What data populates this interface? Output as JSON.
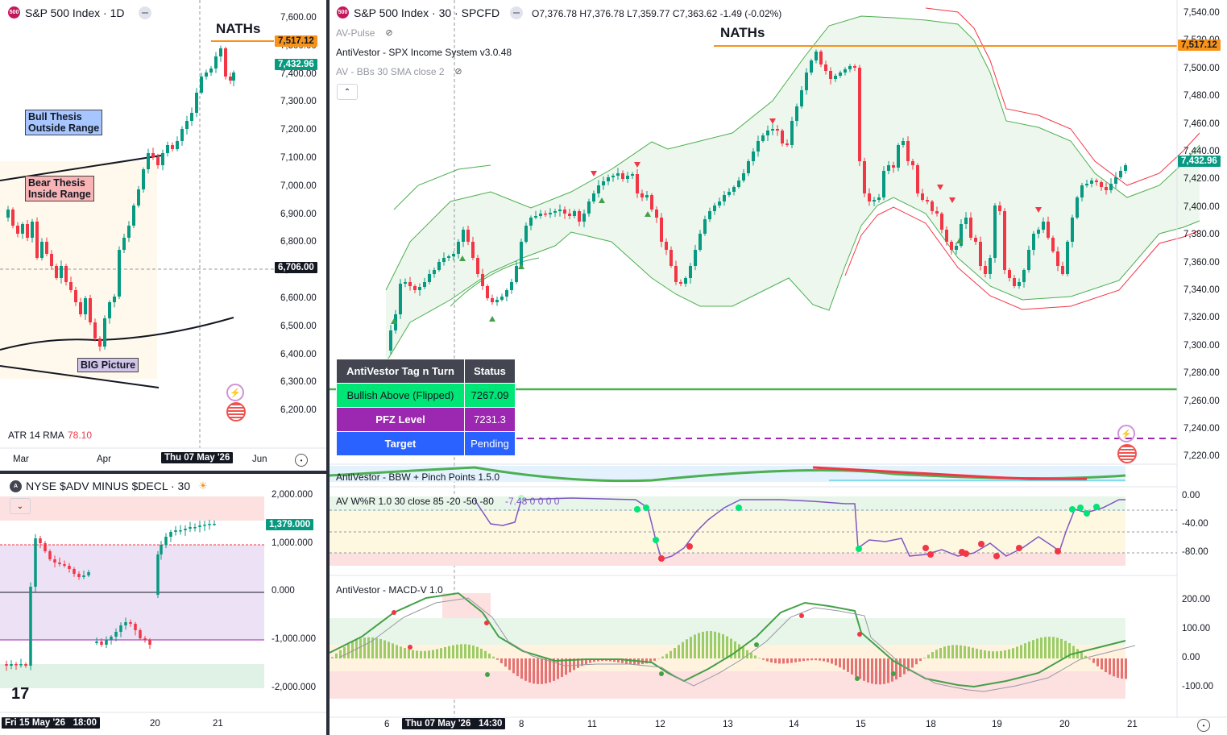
{
  "left_top": {
    "title": "S&P 500 Index · 1D",
    "symbol_badge": "500",
    "annotation_naths": "NATHs",
    "price_labels": [
      "7,600.00",
      "7,500.00",
      "7,400.00",
      "7,300.00",
      "7,200.00",
      "7,100.00",
      "7,000.00",
      "6,900.00",
      "6,800.00",
      "6,700.00",
      "6,600.00",
      "6,500.00",
      "6,400.00",
      "6,300.00",
      "6,200.00"
    ],
    "tag_high": "7,517.12",
    "tag_last": "7,432.96",
    "tag_crosshair": "6,706.00",
    "bull_thesis": [
      "Bull Thesis",
      "Outside Range"
    ],
    "bear_thesis": [
      "Bear Thesis",
      "Inside Range"
    ],
    "big_picture": "BIG Picture",
    "atr_label": "ATR 14 RMA",
    "atr_value": "78.10",
    "time_labels": [
      "Mar",
      "Apr",
      "Jun"
    ],
    "time_crosshair": "Thu 07 May '26"
  },
  "left_bottom": {
    "title": "NYSE $ADV MINUS $DECL · 30",
    "symbol_badge": "A",
    "price_labels": [
      "2,000.000",
      "1,000.000",
      "0.000",
      "-1,000.000",
      "-2,000.000"
    ],
    "tag_last": "1,379.000",
    "time_labels": [
      "20",
      "21"
    ],
    "time_crosshair_date": "Fri 15 May '26",
    "time_crosshair_time": "18:00",
    "logo": "17"
  },
  "right": {
    "title": "S&P 500 Index · 30 · SPCFD",
    "symbol_badge": "500",
    "ohlc": {
      "o": "O7,376.78",
      "h": "H7,376.78",
      "l": "L7,359.77",
      "c": "C7,363.62",
      "chg": "-1.49 (-0.02%)"
    },
    "indicators": [
      "AV-Pulse",
      "AntiVestor - SPX Income System v3.0.48",
      "AV - BBs 30 SMA close 2"
    ],
    "annotation_naths": "NATHs",
    "price_labels": [
      "7,540.00",
      "7,520.00",
      "7,500.00",
      "7,480.00",
      "7,460.00",
      "7,440.00",
      "7,420.00",
      "7,400.00",
      "7,380.00",
      "7,360.00",
      "7,340.00",
      "7,320.00",
      "7,300.00",
      "7,280.00",
      "7,260.00",
      "7,240.00",
      "7,220.00"
    ],
    "tag_high": "7,517.12",
    "tag_last": "7,432.96",
    "table": {
      "headers": [
        "AntiVestor Tag n Turn",
        "Status"
      ],
      "rows": [
        {
          "label": "Bullish Above (Flipped)",
          "value": "7267.09",
          "color": "#00e676"
        },
        {
          "label": "PFZ Level",
          "value": "7231.3",
          "color": "#9c27b0"
        },
        {
          "label": "Target",
          "value": "Pending",
          "color": "#2962ff"
        }
      ]
    },
    "bbw_label": "AntiVestor - BBW + Pinch Points 1.5.0",
    "wr_label": "AV W%R 1.0 30 close 85 -20 -50 -80",
    "wr_values": "-7.48  0  0  0  0",
    "wr_axis": [
      "0.00",
      "-40.00",
      "-80.00"
    ],
    "macd_label": "AntiVestor - MACD-V 1.0",
    "macd_axis": [
      "200.00",
      "100.00",
      "0.00",
      "-100.00"
    ],
    "time_labels": [
      "6",
      "8",
      "11",
      "12",
      "13",
      "14",
      "15",
      "18",
      "19",
      "20",
      "21"
    ],
    "time_crosshair": "Thu 07 May '26",
    "time_crosshair_time": "14:30"
  },
  "colors": {
    "up": "#089981",
    "down": "#f23645",
    "orange": "#f7931a",
    "green": "#4caf50",
    "purple": "#9c27b0"
  }
}
